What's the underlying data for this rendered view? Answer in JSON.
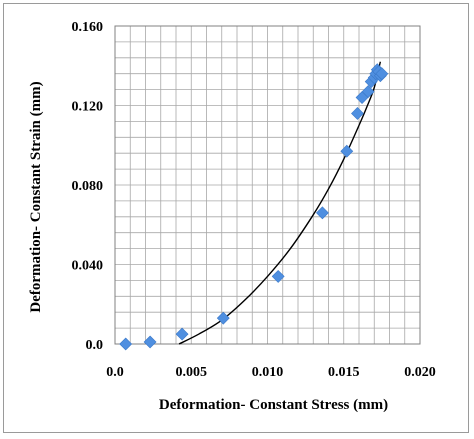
{
  "chart_data": {
    "type": "scatter",
    "xlabel": "Deformation- Constant Stress  (mm)",
    "ylabel": "Deformation- Constant  Strain  (mm)",
    "xlim": [
      0,
      0.02
    ],
    "ylim": [
      0,
      0.16
    ],
    "x_ticks": [
      0,
      0.005,
      0.01,
      0.015,
      0.02
    ],
    "x_tick_labels": [
      "0.0",
      "0.005",
      "0.010",
      "0.015",
      "0.020"
    ],
    "y_ticks": [
      0,
      0.04,
      0.08,
      0.12,
      0.16
    ],
    "y_tick_labels": [
      "0.0",
      "0.040",
      "0.080",
      "0.120",
      "0.160"
    ],
    "grid": true,
    "marker_color": "#4f8fe0",
    "trendline_color": "#000000",
    "series": [
      {
        "marker": "diamond",
        "x": [
          0.0007,
          0.0023,
          0.0044,
          0.0071,
          0.0107,
          0.0136,
          0.0152,
          0.0159,
          0.0162,
          0.0166,
          0.0168,
          0.017,
          0.0171,
          0.0172,
          0.0173,
          0.0174,
          0.0175
        ],
        "y": [
          0.0,
          0.001,
          0.005,
          0.013,
          0.034,
          0.066,
          0.097,
          0.116,
          0.124,
          0.127,
          0.132,
          0.134,
          0.136,
          0.138,
          0.137,
          0.135,
          0.136
        ]
      }
    ],
    "trendline": {
      "type": "polynomial",
      "x": [
        0.0042,
        0.0055,
        0.007,
        0.0085,
        0.01,
        0.0115,
        0.013,
        0.014,
        0.015,
        0.016,
        0.0165,
        0.017,
        0.0174
      ],
      "y": [
        0.0,
        0.005,
        0.012,
        0.022,
        0.034,
        0.048,
        0.065,
        0.078,
        0.093,
        0.11,
        0.119,
        0.129,
        0.142
      ]
    }
  }
}
